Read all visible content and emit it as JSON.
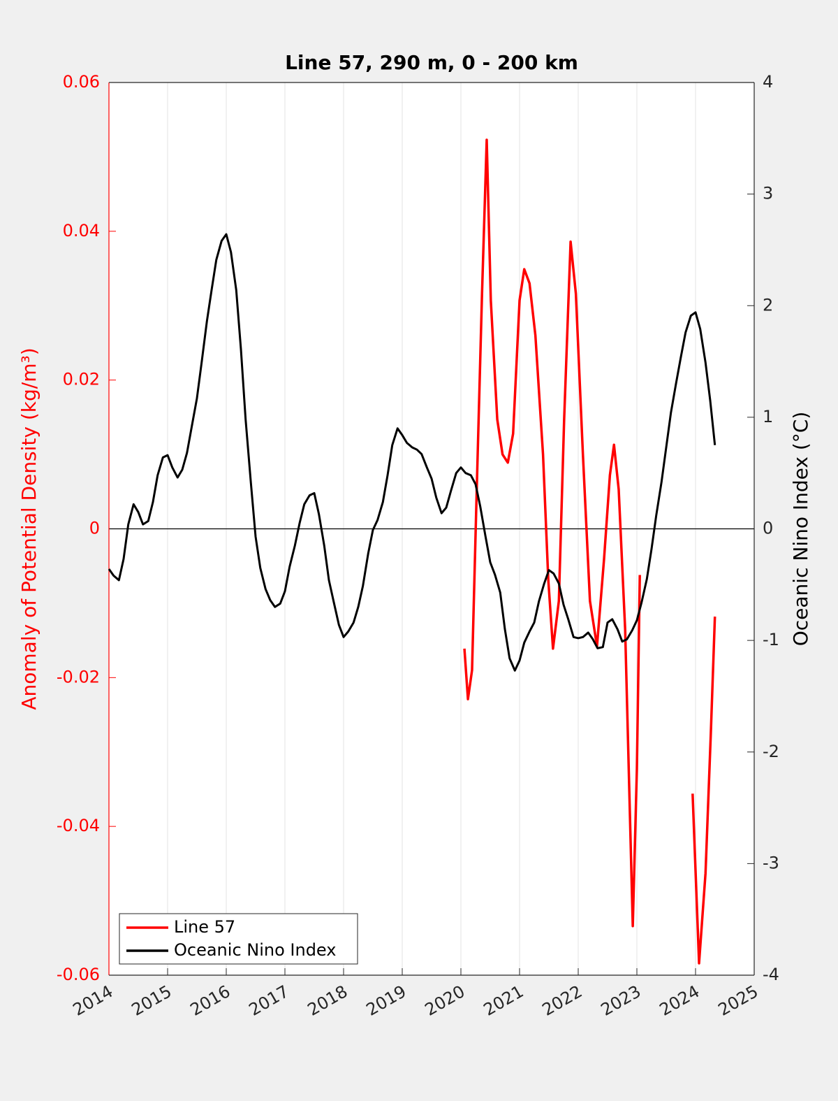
{
  "chart_data": {
    "type": "line",
    "title": "Line 57, 290 m, 0 - 200 km",
    "ylabel": "Anomaly of Potential Density (kg/m³)",
    "y2label": "Oceanic Nino Index (°C)",
    "xlim": [
      2014,
      2025
    ],
    "xticks": [
      2014,
      2015,
      2016,
      2017,
      2018,
      2019,
      2020,
      2021,
      2022,
      2023,
      2024,
      2025
    ],
    "ylim": [
      -0.06,
      0.06
    ],
    "yticks": [
      -0.06,
      -0.04,
      -0.02,
      0,
      0.02,
      0.04,
      0.06
    ],
    "y2lim": [
      -4,
      4
    ],
    "y2ticks": [
      -4,
      -3,
      -2,
      -1,
      0,
      1,
      2,
      3,
      4
    ],
    "ycolor": "#ff0000",
    "xgrid": true,
    "zero_line": true,
    "legend": "southwest",
    "series": [
      {
        "name": "Line 57",
        "color": "#ff0000",
        "x": [
          2020.06,
          2020.12,
          2020.19,
          2020.27,
          2020.36,
          2020.44,
          2020.51,
          2020.62,
          2020.71,
          2020.8,
          2020.89,
          2021.0,
          2021.08,
          2021.17,
          2021.27,
          2021.4,
          2021.49,
          2021.57,
          2021.67,
          2021.76,
          2021.87,
          2021.96,
          2022.08,
          2022.2,
          2022.32,
          2022.44,
          2022.54,
          2022.61,
          2022.69,
          2022.8,
          2022.93,
          2023.0,
          2023.05,
          2023.5,
          2023.95,
          2024.06,
          2024.17,
          2024.26,
          2024.33
        ],
        "values": [
          -0.0161,
          -0.0229,
          -0.019,
          0.0053,
          0.0316,
          0.0523,
          0.0307,
          0.0147,
          0.01,
          0.0089,
          0.0128,
          0.0307,
          0.0349,
          0.033,
          0.026,
          0.01,
          -0.0069,
          -0.0161,
          -0.0097,
          0.0147,
          0.0386,
          0.0316,
          0.01,
          -0.0097,
          -0.0158,
          -0.0041,
          0.0072,
          0.0113,
          0.0053,
          -0.0135,
          -0.0534,
          -0.0323,
          -0.0062,
          null,
          -0.0356,
          -0.0584,
          -0.0463,
          -0.0276,
          -0.0118
        ]
      },
      {
        "name": "Oceanic Nino Index",
        "color": "#000000",
        "axis": "y2",
        "x": [
          2014.0,
          2014.08,
          2014.17,
          2014.25,
          2014.33,
          2014.42,
          2014.5,
          2014.58,
          2014.67,
          2014.75,
          2014.83,
          2014.92,
          2015.0,
          2015.08,
          2015.17,
          2015.25,
          2015.33,
          2015.42,
          2015.5,
          2015.58,
          2015.67,
          2015.75,
          2015.83,
          2015.92,
          2016.0,
          2016.08,
          2016.17,
          2016.25,
          2016.33,
          2016.42,
          2016.5,
          2016.58,
          2016.67,
          2016.75,
          2016.83,
          2016.92,
          2017.0,
          2017.08,
          2017.17,
          2017.25,
          2017.33,
          2017.42,
          2017.5,
          2017.58,
          2017.67,
          2017.75,
          2017.83,
          2017.92,
          2018.0,
          2018.08,
          2018.17,
          2018.25,
          2018.33,
          2018.42,
          2018.5,
          2018.58,
          2018.67,
          2018.75,
          2018.83,
          2018.92,
          2019.0,
          2019.08,
          2019.17,
          2019.25,
          2019.33,
          2019.42,
          2019.5,
          2019.58,
          2019.67,
          2019.75,
          2019.83,
          2019.92,
          2020.0,
          2020.08,
          2020.17,
          2020.25,
          2020.33,
          2020.42,
          2020.5,
          2020.58,
          2020.67,
          2020.75,
          2020.83,
          2020.92,
          2021.0,
          2021.08,
          2021.17,
          2021.25,
          2021.33,
          2021.42,
          2021.5,
          2021.58,
          2021.67,
          2021.75,
          2021.83,
          2021.92,
          2022.0,
          2022.08,
          2022.17,
          2022.25,
          2022.33,
          2022.42,
          2022.5,
          2022.58,
          2022.67,
          2022.75,
          2022.83,
          2022.92,
          2023.0,
          2023.08,
          2023.17,
          2023.25,
          2023.33,
          2023.42,
          2023.5,
          2023.58,
          2023.67,
          2023.75,
          2023.83,
          2023.92,
          2024.0,
          2024.08,
          2024.17,
          2024.25,
          2024.33
        ],
        "values": [
          -0.36,
          -0.42,
          -0.46,
          -0.27,
          0.04,
          0.22,
          0.15,
          0.04,
          0.07,
          0.24,
          0.48,
          0.64,
          0.66,
          0.55,
          0.46,
          0.53,
          0.68,
          0.94,
          1.17,
          1.49,
          1.86,
          2.14,
          2.41,
          2.58,
          2.64,
          2.48,
          2.14,
          1.61,
          0.98,
          0.41,
          -0.07,
          -0.35,
          -0.54,
          -0.64,
          -0.7,
          -0.67,
          -0.56,
          -0.34,
          -0.15,
          0.05,
          0.22,
          0.3,
          0.32,
          0.13,
          -0.15,
          -0.46,
          -0.65,
          -0.86,
          -0.97,
          -0.92,
          -0.84,
          -0.7,
          -0.51,
          -0.22,
          -0.01,
          0.08,
          0.24,
          0.48,
          0.75,
          0.9,
          0.84,
          0.77,
          0.73,
          0.71,
          0.67,
          0.55,
          0.45,
          0.28,
          0.14,
          0.19,
          0.34,
          0.5,
          0.55,
          0.5,
          0.48,
          0.4,
          0.2,
          -0.07,
          -0.3,
          -0.41,
          -0.57,
          -0.9,
          -1.16,
          -1.27,
          -1.18,
          -1.02,
          -0.92,
          -0.84,
          -0.65,
          -0.49,
          -0.37,
          -0.4,
          -0.49,
          -0.68,
          -0.81,
          -0.97,
          -0.98,
          -0.97,
          -0.93,
          -0.99,
          -1.07,
          -1.06,
          -0.84,
          -0.81,
          -0.9,
          -1.01,
          -0.99,
          -0.91,
          -0.82,
          -0.66,
          -0.45,
          -0.18,
          0.12,
          0.42,
          0.73,
          1.04,
          1.31,
          1.54,
          1.76,
          1.91,
          1.94,
          1.79,
          1.49,
          1.15,
          0.75
        ]
      }
    ]
  }
}
